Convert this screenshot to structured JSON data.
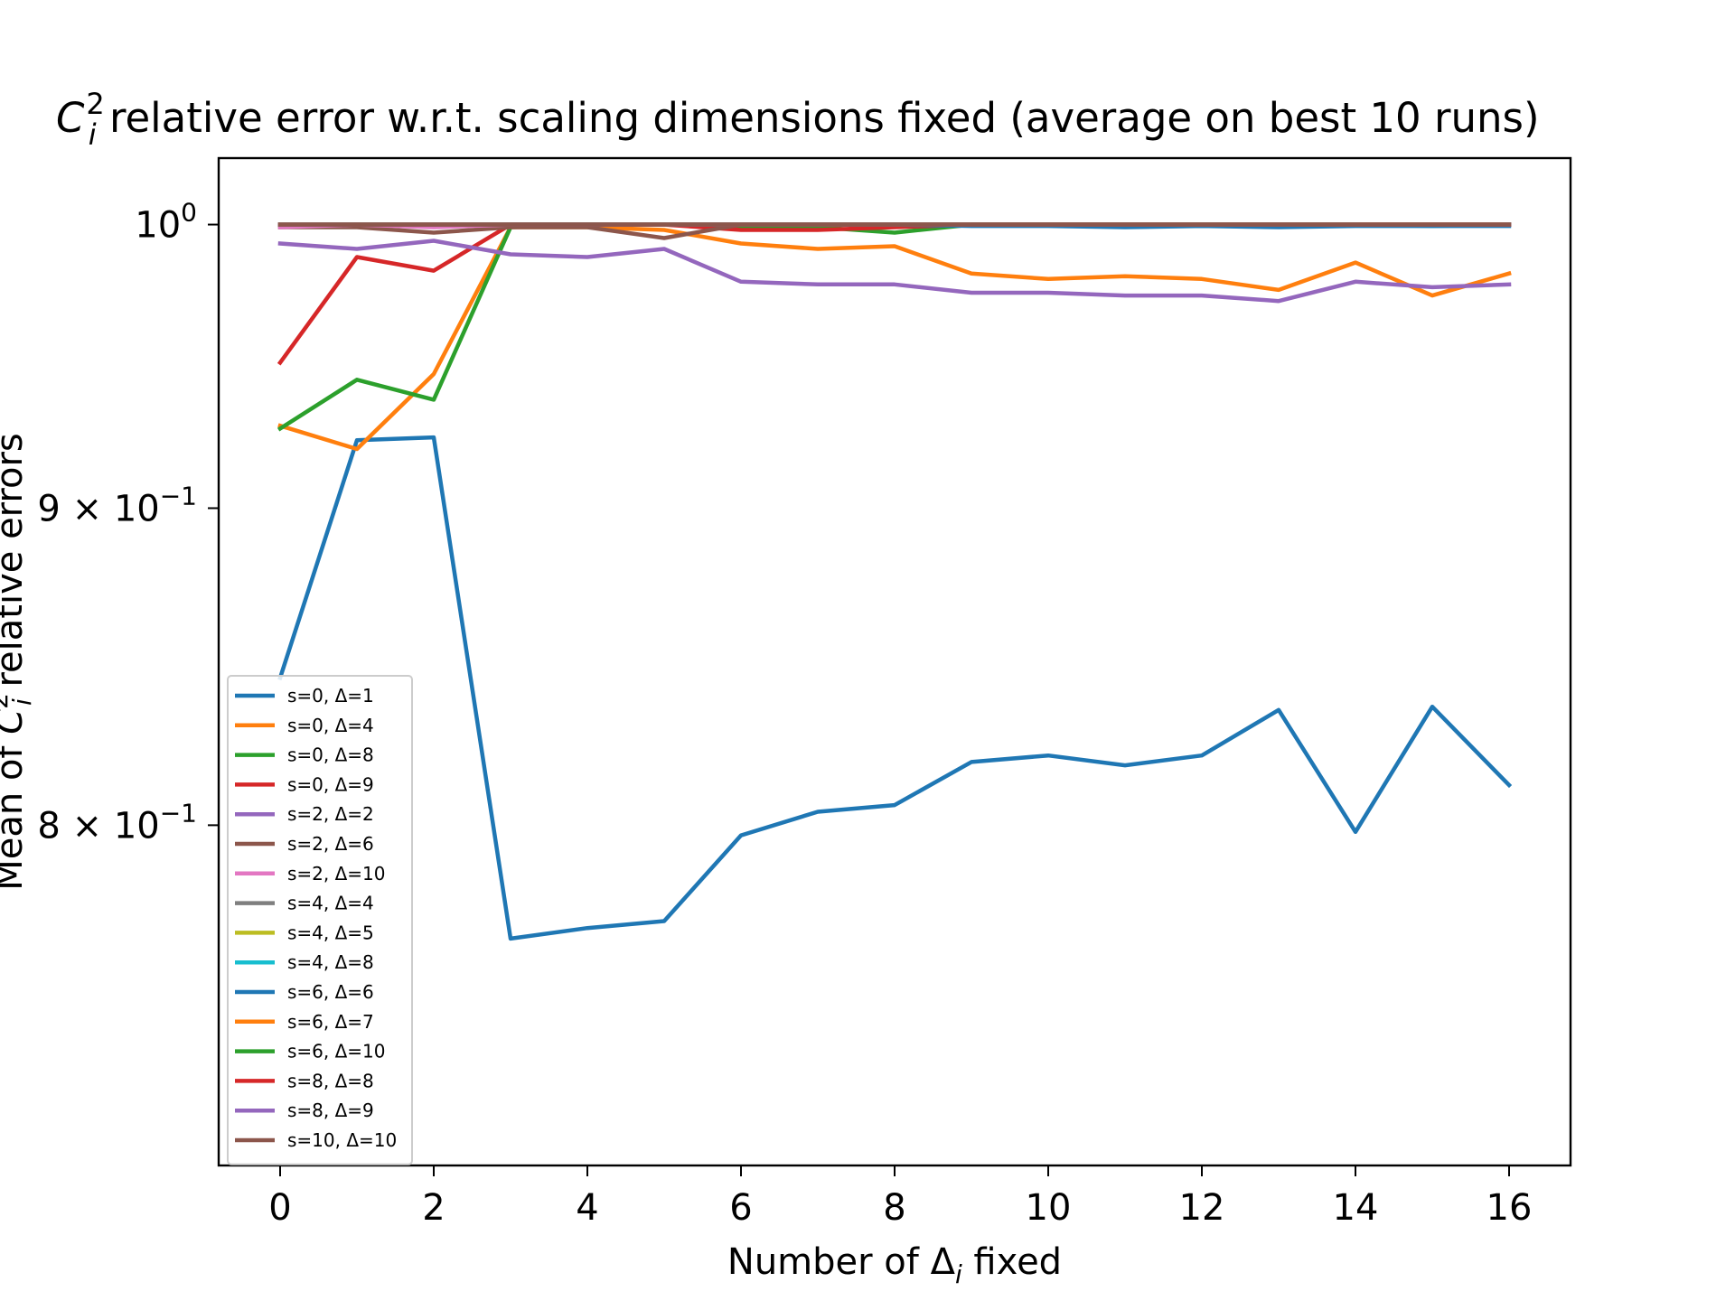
{
  "chart_data": {
    "type": "line",
    "title": "C_i^2 relative error w.r.t. scaling dimensions fixed (average on best 10 runs)",
    "xlabel": "Number of Δ_i fixed",
    "ylabel": "Mean of C_i^2 relative errors",
    "yscale": "log",
    "xlim": [
      -0.8,
      16.8
    ],
    "ylim": [
      0.705,
      1.025
    ],
    "xticks": [
      0,
      2,
      4,
      6,
      8,
      10,
      12,
      14,
      16
    ],
    "xtick_labels": [
      "0",
      "2",
      "4",
      "6",
      "8",
      "10",
      "12",
      "14",
      "16"
    ],
    "yticks": [
      {
        "value": 1.0,
        "base": "10",
        "exp": "0",
        "mult": ""
      },
      {
        "value": 0.9,
        "base": "10",
        "exp": "−1",
        "mult": "9 × "
      },
      {
        "value": 0.8,
        "base": "10",
        "exp": "−1",
        "mult": "8 × "
      }
    ],
    "grid": false,
    "legend_position": "lower-left",
    "x": [
      0,
      1,
      2,
      3,
      4,
      5,
      6,
      7,
      8,
      9,
      10,
      11,
      12,
      13,
      14,
      15,
      16
    ],
    "series": [
      {
        "name": "s=0, Δ=1",
        "color": "#1f77b4",
        "values": [
          0.845,
          0.923,
          0.924,
          0.767,
          0.77,
          0.772,
          0.797,
          0.804,
          0.806,
          0.819,
          0.821,
          0.818,
          0.821,
          0.835,
          0.798,
          0.836,
          0.812
        ]
      },
      {
        "name": "s=0, Δ=4",
        "color": "#ff7f0e",
        "values": [
          0.928,
          0.92,
          0.946,
          0.999,
          0.999,
          0.998,
          0.993,
          0.991,
          0.992,
          0.982,
          0.98,
          0.981,
          0.98,
          0.976,
          0.986,
          0.974,
          0.982
        ]
      },
      {
        "name": "s=0, Δ=8",
        "color": "#2ca02c",
        "values": [
          0.927,
          0.944,
          0.937,
          0.999,
          1.0,
          1.0,
          0.999,
          0.999,
          0.997,
          1.0,
          1.0,
          1.0,
          1.0,
          1.0,
          1.0,
          1.0,
          1.0
        ]
      },
      {
        "name": "s=0, Δ=9",
        "color": "#d62728",
        "values": [
          0.95,
          0.988,
          0.983,
          1.0,
          1.0,
          1.0,
          0.998,
          0.998,
          0.999,
          1.0,
          1.0,
          1.0,
          1.0,
          1.0,
          1.0,
          1.0,
          1.0
        ]
      },
      {
        "name": "s=2, Δ=2",
        "color": "#9467bd",
        "values": [
          0.993,
          0.991,
          0.994,
          0.989,
          0.988,
          0.991,
          0.979,
          0.978,
          0.978,
          0.975,
          0.975,
          0.974,
          0.974,
          0.972,
          0.979,
          0.977,
          0.978
        ]
      },
      {
        "name": "s=2, Δ=6",
        "color": "#8c564b",
        "values": [
          0.999,
          0.999,
          0.997,
          0.999,
          0.999,
          0.995,
          1.0,
          1.0,
          1.0,
          1.0,
          1.0,
          1.0,
          1.0,
          1.0,
          1.0,
          1.0,
          1.0
        ]
      },
      {
        "name": "s=2, Δ=10",
        "color": "#e377c2",
        "values": [
          0.999,
          1.0,
          0.999,
          1.0,
          1.0,
          1.0,
          1.0,
          1.0,
          1.0,
          1.0,
          1.0,
          1.0,
          1.0,
          1.0,
          1.0,
          1.0,
          1.0
        ]
      },
      {
        "name": "s=4, Δ=4",
        "color": "#7f7f7f",
        "values": [
          1.0,
          1.0,
          1.0,
          1.0,
          1.0,
          1.0,
          1.0,
          1.0,
          1.0,
          1.0,
          1.0,
          1.0,
          1.0,
          1.0,
          1.0,
          1.0,
          1.0
        ]
      },
      {
        "name": "s=4, Δ=5",
        "color": "#bcbd22",
        "values": [
          1.0,
          1.0,
          1.0,
          1.0,
          1.0,
          1.0,
          1.0,
          1.0,
          1.0,
          1.0,
          1.0,
          1.0,
          1.0,
          1.0,
          1.0,
          1.0,
          1.0
        ]
      },
      {
        "name": "s=4, Δ=8",
        "color": "#17becf",
        "values": [
          1.0,
          1.0,
          1.0,
          1.0,
          1.0,
          1.0,
          1.0,
          1.0,
          1.0,
          1.0,
          1.0,
          1.0,
          1.0,
          1.0,
          1.0,
          0.9995,
          1.0
        ]
      },
      {
        "name": "s=6, Δ=6",
        "color": "#1f77b4",
        "values": [
          1.0,
          1.0,
          1.0,
          1.0,
          1.0,
          1.0,
          1.0,
          1.0,
          1.0,
          0.9995,
          0.9995,
          0.999,
          0.9995,
          0.999,
          0.9995,
          0.9995,
          0.9995
        ]
      },
      {
        "name": "s=6, Δ=7",
        "color": "#ff7f0e",
        "values": [
          1.0,
          1.0,
          1.0,
          1.0,
          1.0,
          1.0,
          1.0,
          1.0,
          1.0,
          1.0,
          1.0,
          1.0,
          1.0,
          1.0,
          1.0,
          1.0,
          1.0
        ]
      },
      {
        "name": "s=6, Δ=10",
        "color": "#2ca02c",
        "values": [
          1.0,
          1.0,
          1.0,
          1.0,
          1.0,
          1.0,
          1.0,
          1.0,
          1.0,
          1.0,
          1.0,
          1.0,
          1.0,
          1.0,
          1.0,
          1.0,
          1.0
        ]
      },
      {
        "name": "s=8, Δ=8",
        "color": "#d62728",
        "values": [
          1.0,
          1.0,
          1.0,
          1.0,
          1.0,
          1.0,
          1.0,
          1.0,
          1.0,
          1.0,
          1.0,
          1.0,
          1.0,
          1.0,
          1.0,
          1.0,
          1.0
        ]
      },
      {
        "name": "s=8, Δ=9",
        "color": "#9467bd",
        "values": [
          1.0,
          1.0,
          1.0,
          1.0,
          1.0,
          1.0,
          1.0,
          1.0,
          1.0,
          1.0,
          1.0,
          1.0,
          1.0,
          1.0,
          1.0,
          1.0,
          1.0
        ]
      },
      {
        "name": "s=10, Δ=10",
        "color": "#8c564b",
        "values": [
          1.0,
          1.0,
          1.0,
          1.0,
          1.0,
          1.0,
          1.0,
          1.0,
          1.0,
          1.0,
          1.0,
          1.0,
          1.0,
          1.0,
          1.0,
          1.0,
          1.0
        ]
      }
    ]
  }
}
